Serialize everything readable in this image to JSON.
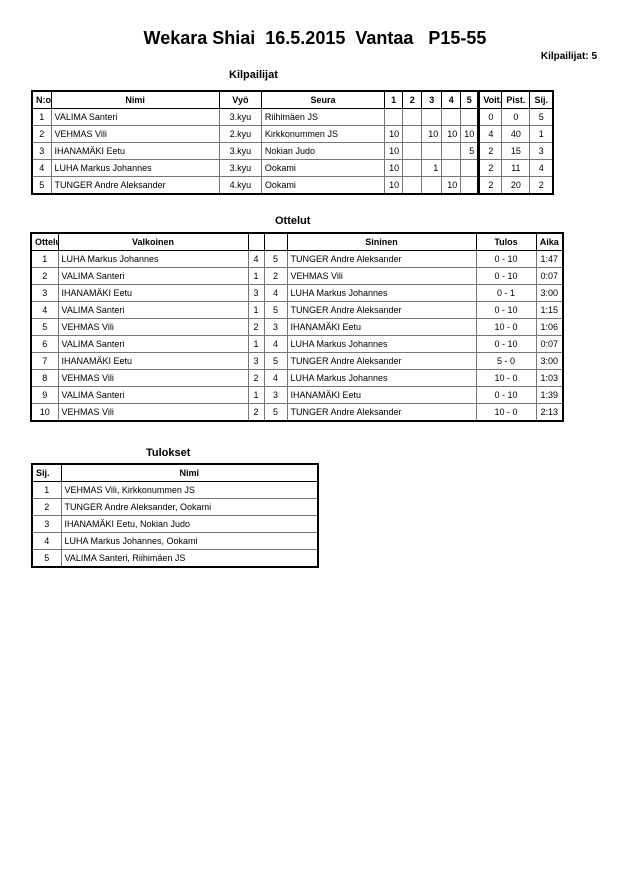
{
  "title": "Wekara Shiai  16.5.2015  Vantaa   P15-55",
  "competitor_count": {
    "label": "Kilpailijat:",
    "value": "5"
  },
  "competitors": {
    "heading": "Kilpailijat",
    "headers": [
      "N:o",
      "Nimi",
      "Vyö",
      "Seura",
      "1",
      "2",
      "3",
      "4",
      "5",
      "Voit.",
      "Pist.",
      "Sij."
    ],
    "rows": [
      {
        "no": "1",
        "name": "VALIMA Santeri",
        "belt": "3.kyu",
        "club": "Riihimäen JS",
        "scores": [
          "",
          "",
          "",
          "",
          ""
        ],
        "wins": "0",
        "points": "0",
        "place": "5"
      },
      {
        "no": "2",
        "name": "VEHMAS Vili",
        "belt": "2.kyu",
        "club": "Kirkkonummen JS",
        "scores": [
          "10",
          "",
          "10",
          "10",
          "10"
        ],
        "wins": "4",
        "points": "40",
        "place": "1"
      },
      {
        "no": "3",
        "name": "IHANAMÄKI Eetu",
        "belt": "3.kyu",
        "club": "Nokian Judo",
        "scores": [
          "10",
          "",
          "",
          "",
          "5"
        ],
        "wins": "2",
        "points": "15",
        "place": "3"
      },
      {
        "no": "4",
        "name": "LUHA Markus Johannes",
        "belt": "3.kyu",
        "club": "Ookami",
        "scores": [
          "10",
          "",
          "1",
          "",
          ""
        ],
        "wins": "2",
        "points": "11",
        "place": "4"
      },
      {
        "no": "5",
        "name": "TUNGER Andre Aleksander",
        "belt": "4.kyu",
        "club": "Ookami",
        "scores": [
          "10",
          "",
          "",
          "10",
          ""
        ],
        "wins": "2",
        "points": "20",
        "place": "2"
      }
    ]
  },
  "matches": {
    "heading": "Ottelut",
    "headers": [
      "Ottelu",
      "Valkoinen",
      "",
      "",
      "Sininen",
      "Tulos",
      "Aika"
    ],
    "rows": [
      {
        "no": "1",
        "white": "LUHA Markus Johannes",
        "wn": "4",
        "bn": "5",
        "blue": "TUNGER Andre Aleksander",
        "result": "0 - 10",
        "time": "1:47"
      },
      {
        "no": "2",
        "white": "VALIMA Santeri",
        "wn": "1",
        "bn": "2",
        "blue": "VEHMAS Vili",
        "result": "0 - 10",
        "time": "0:07"
      },
      {
        "no": "3",
        "white": "IHANAMÄKI Eetu",
        "wn": "3",
        "bn": "4",
        "blue": "LUHA Markus Johannes",
        "result": "0 - 1",
        "time": "3:00"
      },
      {
        "no": "4",
        "white": "VALIMA Santeri",
        "wn": "1",
        "bn": "5",
        "blue": "TUNGER Andre Aleksander",
        "result": "0 - 10",
        "time": "1:15"
      },
      {
        "no": "5",
        "white": "VEHMAS Vili",
        "wn": "2",
        "bn": "3",
        "blue": "IHANAMÄKI Eetu",
        "result": "10 - 0",
        "time": "1:06"
      },
      {
        "no": "6",
        "white": "VALIMA Santeri",
        "wn": "1",
        "bn": "4",
        "blue": "LUHA Markus Johannes",
        "result": "0 - 10",
        "time": "0:07"
      },
      {
        "no": "7",
        "white": "IHANAMÄKI Eetu",
        "wn": "3",
        "bn": "5",
        "blue": "TUNGER Andre Aleksander",
        "result": "5 - 0",
        "time": "3:00"
      },
      {
        "no": "8",
        "white": "VEHMAS Vili",
        "wn": "2",
        "bn": "4",
        "blue": "LUHA Markus Johannes",
        "result": "10 - 0",
        "time": "1:03"
      },
      {
        "no": "9",
        "white": "VALIMA Santeri",
        "wn": "1",
        "bn": "3",
        "blue": "IHANAMÄKI Eetu",
        "result": "0 - 10",
        "time": "1:39"
      },
      {
        "no": "10",
        "white": "VEHMAS Vili",
        "wn": "2",
        "bn": "5",
        "blue": "TUNGER Andre Aleksander",
        "result": "10 - 0",
        "time": "2:13"
      }
    ]
  },
  "results": {
    "heading": "Tulokset",
    "headers": [
      "Sij.",
      "Nimi"
    ],
    "rows": [
      {
        "place": "1",
        "name": "VEHMAS Vili, Kirkkonummen JS"
      },
      {
        "place": "2",
        "name": "TUNGER Andre Aleksander, Ookami"
      },
      {
        "place": "3",
        "name": "IHANAMÄKI Eetu, Nokian Judo"
      },
      {
        "place": "4",
        "name": "LUHA Markus Johannes, Ookami"
      },
      {
        "place": "5",
        "name": "VALIMA Santeri, Riihimäen JS"
      }
    ]
  }
}
